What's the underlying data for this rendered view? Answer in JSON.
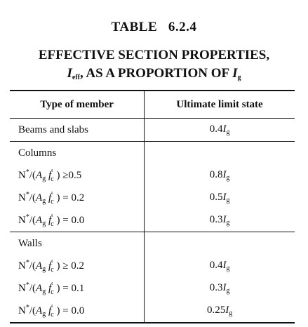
{
  "title": "TABLE   6.2.4",
  "subtitle": [
    [
      {
        "text": "EFFECTIVE SECTION PROPERTIES,"
      }
    ],
    [
      {
        "text": "I",
        "style": "i"
      },
      {
        "text": "eff",
        "style": "sub"
      },
      {
        "text": ", AS A PROPORTION OF "
      },
      {
        "text": "I",
        "style": "i"
      },
      {
        "text": "g",
        "style": "sub"
      }
    ]
  ],
  "table": {
    "header": [
      "Type of member",
      "Ultimate limit state"
    ],
    "groups": [
      {
        "rows": [
          {
            "member": [
              {
                "text": "Beams and slabs"
              }
            ],
            "value": [
              {
                "text": "0.4"
              },
              {
                "text": "I",
                "style": "i"
              },
              {
                "text": "g",
                "style": "sub"
              }
            ]
          }
        ]
      },
      {
        "rows": [
          {
            "member": [
              {
                "text": "Columns"
              }
            ]
          },
          {
            "member": [
              {
                "text": "N"
              },
              {
                "text": "*",
                "style": "sup"
              },
              {
                "text": "/("
              },
              {
                "text": "A",
                "style": "i"
              },
              {
                "text": "g",
                "style": "sub"
              },
              {
                "text": " "
              },
              {
                "text": "f",
                "style": "i"
              },
              {
                "text": "′",
                "style": "sup"
              },
              {
                "text": "c",
                "style": "sub2"
              },
              {
                "text": " ) ≥0.5"
              }
            ],
            "value": [
              {
                "text": "0.8"
              },
              {
                "text": "I",
                "style": "i"
              },
              {
                "text": "g",
                "style": "sub"
              }
            ]
          },
          {
            "member": [
              {
                "text": "N"
              },
              {
                "text": "*",
                "style": "sup"
              },
              {
                "text": "/("
              },
              {
                "text": "A",
                "style": "i"
              },
              {
                "text": "g",
                "style": "sub"
              },
              {
                "text": " "
              },
              {
                "text": "f",
                "style": "i"
              },
              {
                "text": "′",
                "style": "sup"
              },
              {
                "text": "c",
                "style": "sub2"
              },
              {
                "text": " ) = 0.2"
              }
            ],
            "value": [
              {
                "text": "0.5"
              },
              {
                "text": "I",
                "style": "i"
              },
              {
                "text": "g",
                "style": "sub"
              }
            ]
          },
          {
            "member": [
              {
                "text": "N"
              },
              {
                "text": "*",
                "style": "sup"
              },
              {
                "text": "/("
              },
              {
                "text": "A",
                "style": "i"
              },
              {
                "text": "g",
                "style": "sub"
              },
              {
                "text": " "
              },
              {
                "text": "f",
                "style": "i"
              },
              {
                "text": "′",
                "style": "sup"
              },
              {
                "text": "c",
                "style": "sub2"
              },
              {
                "text": " ) = 0.0"
              }
            ],
            "value": [
              {
                "text": "0.3"
              },
              {
                "text": "I",
                "style": "i"
              },
              {
                "text": "g",
                "style": "sub"
              }
            ]
          }
        ]
      },
      {
        "rows": [
          {
            "member": [
              {
                "text": "Walls"
              }
            ]
          },
          {
            "member": [
              {
                "text": "N"
              },
              {
                "text": "*",
                "style": "sup"
              },
              {
                "text": "/("
              },
              {
                "text": "A",
                "style": "i"
              },
              {
                "text": "g",
                "style": "sub"
              },
              {
                "text": " "
              },
              {
                "text": "f",
                "style": "i"
              },
              {
                "text": "′",
                "style": "sup"
              },
              {
                "text": "c",
                "style": "sub2"
              },
              {
                "text": " ) ≥ 0.2"
              }
            ],
            "value": [
              {
                "text": "0.4"
              },
              {
                "text": "I",
                "style": "i"
              },
              {
                "text": "g",
                "style": "sub"
              }
            ]
          },
          {
            "member": [
              {
                "text": "N"
              },
              {
                "text": "*",
                "style": "sup"
              },
              {
                "text": "/("
              },
              {
                "text": "A",
                "style": "i"
              },
              {
                "text": "g",
                "style": "sub"
              },
              {
                "text": " "
              },
              {
                "text": "f",
                "style": "i"
              },
              {
                "text": "′",
                "style": "sup"
              },
              {
                "text": "c",
                "style": "sub2"
              },
              {
                "text": " ) = 0.1"
              }
            ],
            "value": [
              {
                "text": "0.3"
              },
              {
                "text": "I",
                "style": "i"
              },
              {
                "text": "g",
                "style": "sub"
              }
            ]
          },
          {
            "member": [
              {
                "text": "N"
              },
              {
                "text": "*",
                "style": "sup"
              },
              {
                "text": "/("
              },
              {
                "text": "A",
                "style": "i"
              },
              {
                "text": "g",
                "style": "sub"
              },
              {
                "text": " "
              },
              {
                "text": "f",
                "style": "i"
              },
              {
                "text": "′",
                "style": "sup"
              },
              {
                "text": "c",
                "style": "sub2"
              },
              {
                "text": " ) = 0.0"
              }
            ],
            "value": [
              {
                "text": "0.25"
              },
              {
                "text": "I",
                "style": "i"
              },
              {
                "text": "g",
                "style": "sub"
              }
            ]
          }
        ]
      }
    ]
  }
}
